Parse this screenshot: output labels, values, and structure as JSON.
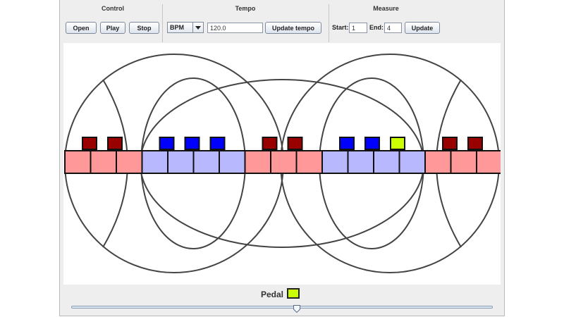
{
  "control": {
    "title": "Control",
    "open_label": "Open",
    "play_label": "Play",
    "stop_label": "Stop"
  },
  "tempo": {
    "title": "Tempo",
    "unit": "BPM",
    "value": "120.0",
    "update_label": "Update tempo"
  },
  "measure": {
    "title": "Measure",
    "start_label": "Start:",
    "start_value": "1",
    "end_label": "End:",
    "end_value": "4",
    "update_label": "Update"
  },
  "pedal": {
    "label": "Pedal",
    "color": "#ccff00"
  },
  "slider": {
    "value_fraction": 0.535
  },
  "icons": {
    "dropdown": "chevron-down-icon",
    "slider_thumb": "slider-thumb-icon"
  },
  "colors": {
    "window_bg": "#eeeeee",
    "measure_light_red": "#ff9999",
    "measure_light_blue": "#b8b8ff",
    "note_dark_red": "#990000",
    "note_blue": "#0000ff",
    "note_active": "#ccff00",
    "circle_stroke": "#444444"
  },
  "visualization": {
    "measures": [
      {
        "color": "red",
        "beats": 3,
        "notes": [
          "dark-red",
          "dark-red"
        ]
      },
      {
        "color": "blue",
        "beats": 4,
        "notes": [
          "blue",
          "blue",
          "blue"
        ]
      },
      {
        "color": "red",
        "beats": 3,
        "notes": [
          "dark-red",
          "dark-red"
        ]
      },
      {
        "color": "blue",
        "beats": 4,
        "notes": [
          "blue",
          "blue",
          "active"
        ]
      },
      {
        "color": "red",
        "beats": 3,
        "notes": [
          "dark-red",
          "dark-red"
        ]
      }
    ]
  }
}
